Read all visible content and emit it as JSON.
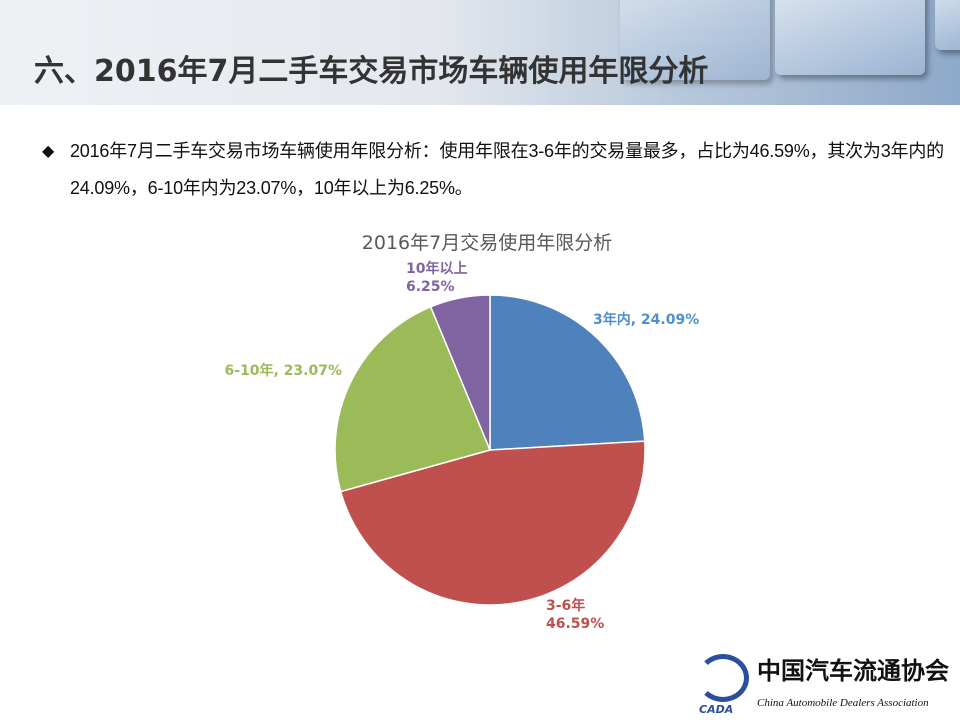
{
  "header": {
    "title": "六、2016年7月二手车交易市场车辆使用年限分析"
  },
  "bullet": {
    "icon": "diamond-bullet-icon",
    "text": "2016年7月二手车交易市场车辆使用年限分析：使用年限在3-6年的交易量最多，占比为46.59%，其次为3年内的24.09%，6-10年内为23.07%，10年以上为6.25%。"
  },
  "chart_data": {
    "type": "pie",
    "title": "2016年7月交易使用年限分析",
    "categories": [
      "3年内",
      "3-6年",
      "6-10年",
      "10年以上"
    ],
    "values": [
      24.09,
      46.59,
      23.07,
      6.25
    ],
    "labels": [
      "3年内, 24.09%",
      "3-6年\n46.59%",
      "6-10年, 23.07%",
      "10年以上\n6.25%"
    ],
    "colors": [
      "#4f81bd",
      "#c0504d",
      "#9bbb59",
      "#8064a2"
    ],
    "label_colors": [
      "#4f8fce",
      "#c0504d",
      "#9bbb59",
      "#8064a2"
    ],
    "start_angle": "top",
    "direction": "clockwise"
  },
  "logo": {
    "name_cn": "中国汽车流通协会",
    "name_en": "China Automobile Dealers Association",
    "abbr": "CADA"
  }
}
